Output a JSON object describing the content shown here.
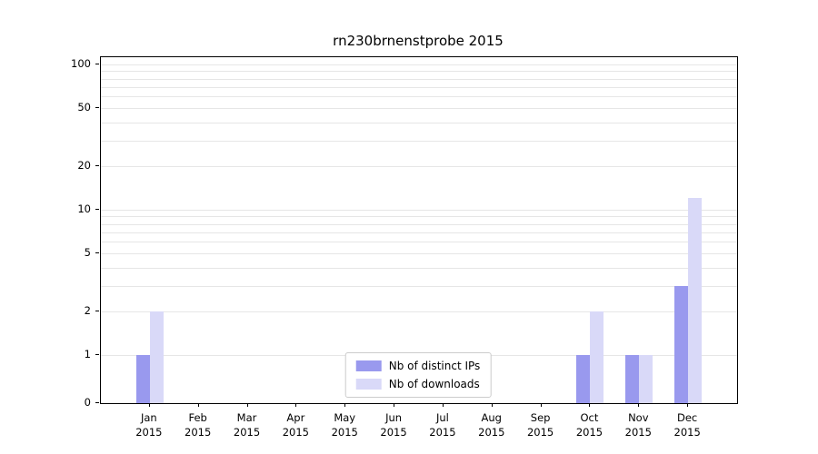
{
  "chart_data": {
    "type": "bar",
    "title": "rn230brnenstprobe 2015",
    "year_label": "2015",
    "categories": [
      "Jan",
      "Feb",
      "Mar",
      "Apr",
      "May",
      "Jun",
      "Jul",
      "Aug",
      "Sep",
      "Oct",
      "Nov",
      "Dec"
    ],
    "series": [
      {
        "name": "Nb of distinct IPs",
        "color": "#9999ee",
        "values": [
          1,
          0,
          0,
          0,
          0,
          0,
          0,
          0,
          0,
          1,
          1,
          3
        ]
      },
      {
        "name": "Nb of downloads",
        "color": "#d9d9f8",
        "values": [
          2,
          0,
          0,
          0,
          0,
          0,
          0,
          0,
          0,
          2,
          1,
          12
        ]
      }
    ],
    "y_ticks": [
      0,
      1,
      2,
      5,
      10,
      20,
      50,
      100
    ],
    "gridlines": [
      1,
      2,
      3,
      4,
      5,
      6,
      7,
      8,
      9,
      10,
      20,
      30,
      40,
      50,
      60,
      70,
      80,
      90,
      100
    ],
    "scale": "symlog",
    "ylim": [
      0,
      110
    ],
    "legend_position": "lower center",
    "axis_color": "#000000",
    "grid_color": "#e6e6e6"
  }
}
